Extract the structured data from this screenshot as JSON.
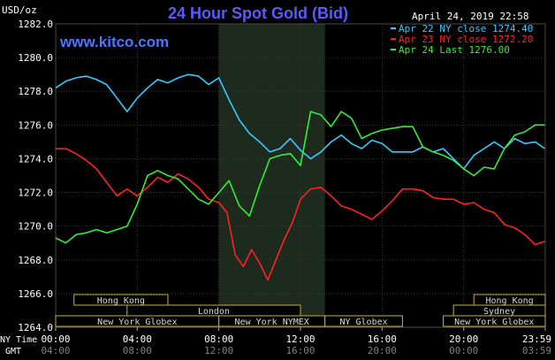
{
  "chart_data": {
    "type": "line",
    "title": "24 Hour Spot Gold (Bid)",
    "watermark": "www.kitco.com",
    "ylabel": "USD/oz",
    "timestamp": "April 24, 2019 22:58",
    "ylim": [
      1264.0,
      1282.0
    ],
    "yticks": [
      "1282.0",
      "1280.0",
      "1278.0",
      "1276.0",
      "1274.0",
      "1272.0",
      "1270.0",
      "1268.0",
      "1266.0",
      "1264.0"
    ],
    "x_axis": {
      "ny_label": "NY Time",
      "gmt_label": "GMT",
      "ny_ticks": [
        "00:00",
        "04:00",
        "08:00",
        "12:00",
        "16:00",
        "20:00",
        "23:59"
      ],
      "gmt_ticks": [
        "04:00",
        "08:00",
        "12:00",
        "16:00",
        "20:00",
        "00:00",
        "03:59"
      ]
    },
    "highlight_hours": [
      8.0,
      13.2
    ],
    "legend": [
      {
        "label": "Apr 22 NY close 1274.40",
        "color": "#33ccff"
      },
      {
        "label": "Apr 23 NY close 1272.20",
        "color": "#ff2222"
      },
      {
        "label": "Apr 24 Last 1276.00",
        "color": "#33ee33"
      }
    ],
    "sessions": {
      "row1": [
        {
          "label": "Hong Kong",
          "start": 0.9,
          "end": 5.5
        },
        {
          "label": "Hong Kong",
          "start": 20.5,
          "end": 24.0
        }
      ],
      "row2": [
        {
          "label": "London",
          "start": 3.5,
          "end": 12.0
        },
        {
          "label": "Sydney",
          "start": 19.5,
          "end": 24.0
        }
      ],
      "row3": [
        {
          "label": "New York Globex",
          "start": 0.0,
          "end": 8.0
        },
        {
          "label": "New York NYMEX",
          "start": 8.0,
          "end": 13.2
        },
        {
          "label": "NY Globex",
          "start": 13.2,
          "end": 17.0
        },
        {
          "label": "New York Globex",
          "start": 19.0,
          "end": 24.0
        }
      ]
    },
    "series": [
      {
        "name": "Apr 22 NY close 1274.40",
        "color": "#33ccff",
        "x": [
          0.0,
          0.5,
          1.0,
          1.5,
          2.0,
          2.5,
          3.0,
          3.5,
          4.0,
          4.5,
          5.0,
          5.5,
          6.0,
          6.5,
          7.0,
          7.5,
          8.0,
          8.5,
          9.0,
          9.5,
          10.0,
          10.5,
          11.0,
          11.5,
          12.0,
          12.5,
          13.0,
          13.5,
          14.0,
          14.5,
          15.0,
          15.5,
          16.0,
          16.5,
          17.0,
          17.5,
          18.0,
          18.5,
          19.0,
          19.5,
          20.0,
          20.5,
          21.0,
          21.5,
          22.0,
          22.5,
          23.0,
          23.5,
          23.98
        ],
        "values": [
          1278.2,
          1278.6,
          1278.8,
          1278.9,
          1278.7,
          1278.4,
          1277.6,
          1276.8,
          1277.6,
          1278.2,
          1278.7,
          1278.5,
          1278.8,
          1279.0,
          1278.9,
          1278.4,
          1278.8,
          1277.5,
          1276.3,
          1275.5,
          1275.0,
          1274.4,
          1274.6,
          1275.2,
          1274.5,
          1274.0,
          1274.4,
          1275.0,
          1275.4,
          1274.9,
          1274.6,
          1275.1,
          1274.9,
          1274.4,
          1274.4,
          1274.4,
          1274.7,
          1274.4,
          1274.6,
          1274.0,
          1273.4,
          1274.2,
          1274.6,
          1275.0,
          1274.6,
          1275.2,
          1274.9,
          1275.0,
          1274.6
        ]
      },
      {
        "name": "Apr 23 NY close 1272.20",
        "color": "#ff2222",
        "x": [
          0.0,
          0.5,
          1.0,
          1.5,
          2.0,
          2.5,
          3.0,
          3.5,
          4.0,
          4.5,
          5.0,
          5.5,
          6.0,
          6.5,
          7.0,
          7.5,
          8.0,
          8.4,
          8.8,
          9.2,
          9.6,
          10.0,
          10.4,
          10.8,
          11.2,
          11.6,
          12.0,
          12.5,
          13.0,
          13.5,
          14.0,
          14.5,
          15.0,
          15.5,
          16.0,
          16.5,
          17.0,
          17.5,
          18.0,
          18.5,
          19.0,
          19.5,
          20.0,
          20.5,
          21.0,
          21.5,
          22.0,
          22.5,
          23.0,
          23.5,
          23.98
        ],
        "values": [
          1274.6,
          1274.6,
          1274.3,
          1273.9,
          1273.4,
          1272.6,
          1271.8,
          1272.2,
          1271.8,
          1272.3,
          1272.9,
          1272.6,
          1273.1,
          1272.8,
          1272.3,
          1271.6,
          1271.4,
          1270.8,
          1268.3,
          1267.6,
          1268.6,
          1267.8,
          1266.8,
          1268.0,
          1269.2,
          1270.2,
          1271.6,
          1272.2,
          1272.3,
          1271.8,
          1271.2,
          1271.0,
          1270.7,
          1270.4,
          1270.9,
          1271.5,
          1272.2,
          1272.2,
          1272.1,
          1271.7,
          1271.6,
          1271.6,
          1271.3,
          1271.4,
          1271.0,
          1270.8,
          1270.1,
          1269.9,
          1269.5,
          1268.9,
          1269.1
        ]
      },
      {
        "name": "Apr 24 Last 1276.00",
        "color": "#33ee33",
        "x": [
          0.0,
          0.5,
          1.0,
          1.5,
          2.0,
          2.5,
          3.0,
          3.5,
          4.0,
          4.5,
          5.0,
          5.5,
          6.0,
          6.5,
          7.0,
          7.5,
          8.0,
          8.5,
          9.0,
          9.5,
          10.0,
          10.5,
          11.0,
          11.5,
          12.0,
          12.5,
          13.0,
          13.5,
          14.0,
          14.5,
          15.0,
          15.5,
          16.0,
          16.5,
          17.0,
          17.5,
          18.0,
          18.5,
          19.0,
          19.5,
          20.0,
          20.5,
          21.0,
          21.5,
          22.0,
          22.5,
          23.0,
          23.5,
          23.98
        ],
        "values": [
          1269.3,
          1269.0,
          1269.5,
          1269.6,
          1269.8,
          1269.6,
          1269.8,
          1270.0,
          1271.3,
          1273.0,
          1273.3,
          1273.0,
          1272.8,
          1272.2,
          1271.6,
          1271.3,
          1272.0,
          1272.7,
          1271.2,
          1270.6,
          1272.4,
          1274.0,
          1274.2,
          1274.3,
          1273.6,
          1276.8,
          1276.6,
          1275.9,
          1276.8,
          1276.4,
          1275.2,
          1275.5,
          1275.7,
          1275.8,
          1275.9,
          1275.9,
          1274.7,
          1274.4,
          1274.2,
          1273.9,
          1273.4,
          1273.0,
          1273.5,
          1273.4,
          1274.6,
          1275.4,
          1275.6,
          1276.0,
          1276.0
        ]
      }
    ]
  }
}
